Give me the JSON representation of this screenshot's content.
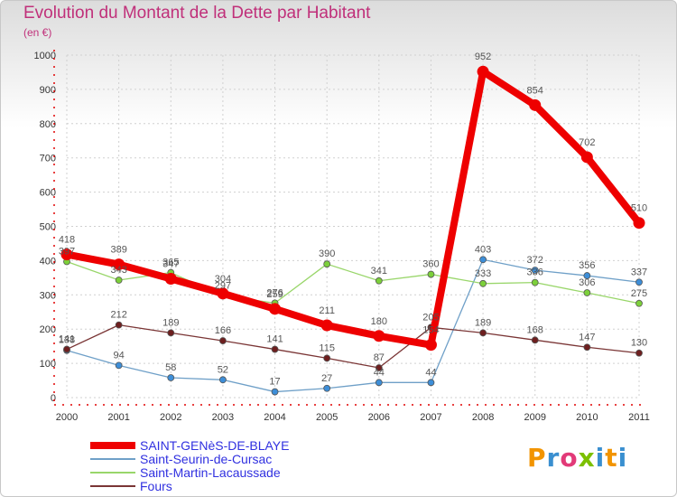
{
  "header": {
    "title": "Evolution du Montant de la Dette par Habitant",
    "unit": "(en €)"
  },
  "logo": {
    "text": "Proxiti"
  },
  "colors": {
    "grid": "#d0d0d0",
    "axis": "#e00000",
    "tick_label": "#333333",
    "data_label": "#555555"
  },
  "chart_data": {
    "type": "line",
    "title": "Evolution du Montant de la Dette par Habitant",
    "subtitle": "(en €)",
    "xlabel": "",
    "ylabel": "",
    "x": [
      "2000",
      "2001",
      "2002",
      "2003",
      "2004",
      "2005",
      "2006",
      "2007",
      "2008",
      "2009",
      "2010",
      "2011"
    ],
    "ylim": [
      0,
      1000
    ],
    "yticks": [
      0,
      100,
      200,
      300,
      400,
      500,
      600,
      700,
      800,
      900,
      1000
    ],
    "grid": true,
    "legend_position": "bottom-left",
    "series": [
      {
        "name": "SAINT-GENèS-DE-BLAYE",
        "color": "#ee0000",
        "emphasis": true,
        "values": [
          418,
          389,
          347,
          304,
          259,
          211,
          180,
          154,
          952,
          854,
          702,
          510
        ]
      },
      {
        "name": "Saint-Seurin-de-Cursac",
        "color": "#6fa0c8",
        "marker": "#3d8ed8",
        "values": [
          138,
          94,
          58,
          52,
          17,
          27,
          44,
          44,
          403,
          372,
          356,
          337
        ]
      },
      {
        "name": "Saint-Martin-Lacaussade",
        "color": "#99d66a",
        "marker": "#7cd03a",
        "values": [
          397,
          343,
          365,
          297,
          276,
          390,
          341,
          360,
          333,
          336,
          306,
          275
        ]
      },
      {
        "name": "Fours",
        "color": "#7a3535",
        "marker": "#6e1f1f",
        "values": [
          141,
          212,
          189,
          166,
          141,
          115,
          87,
          205,
          189,
          168,
          147,
          130
        ]
      }
    ]
  }
}
